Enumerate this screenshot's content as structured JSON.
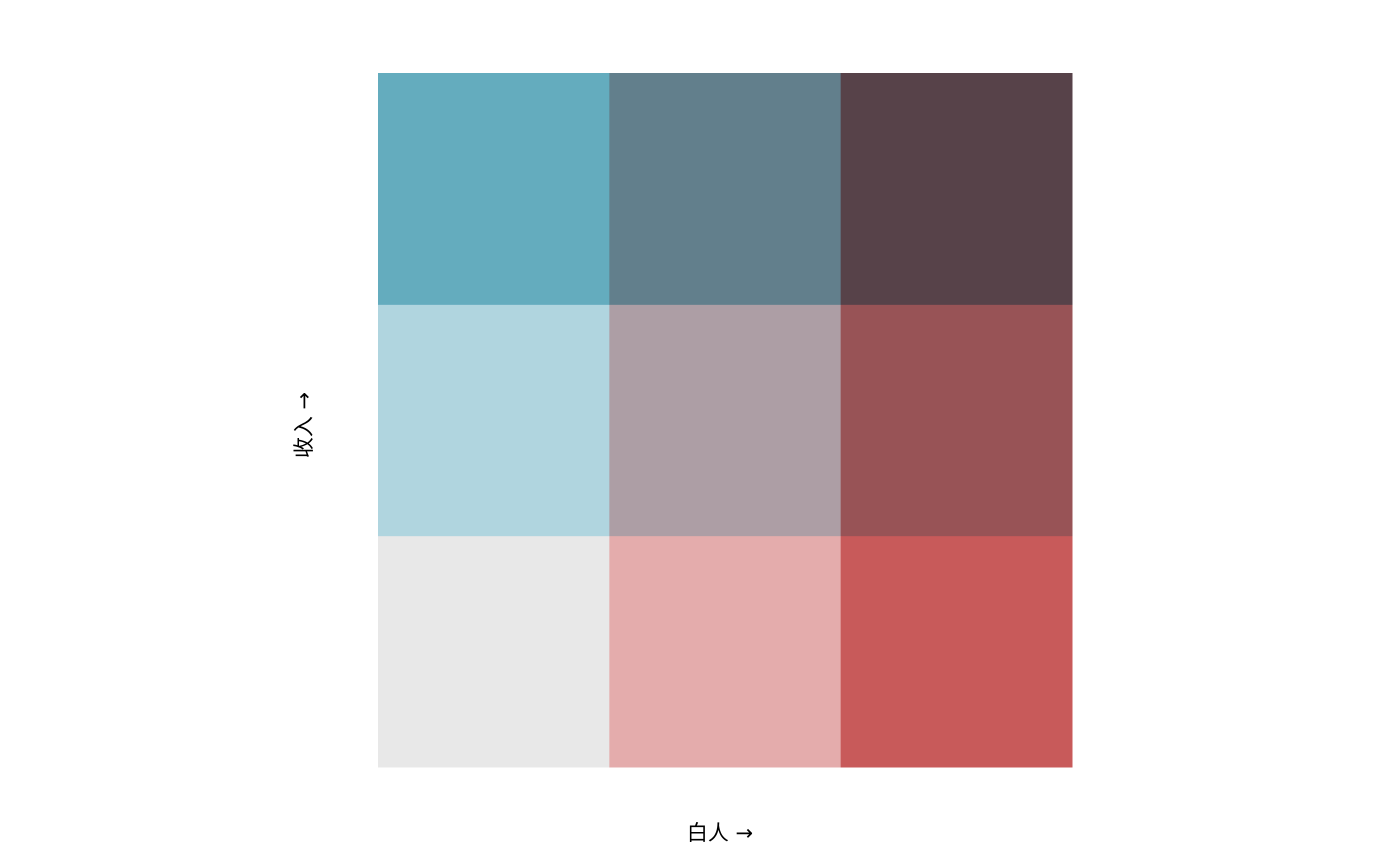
{
  "chart_data": {
    "type": "heatmap",
    "title": "",
    "xlabel": "白人 →",
    "ylabel": "收入 →",
    "grid_size": [
      3,
      3
    ],
    "cells": [
      {
        "col": 0,
        "row": 0,
        "color": "#e8e8e8"
      },
      {
        "col": 1,
        "row": 0,
        "color": "#e4acac"
      },
      {
        "col": 2,
        "row": 0,
        "color": "#c85a5a"
      },
      {
        "col": 0,
        "row": 1,
        "color": "#b0d5df"
      },
      {
        "col": 1,
        "row": 1,
        "color": "#ad9ea5"
      },
      {
        "col": 2,
        "row": 1,
        "color": "#985356"
      },
      {
        "col": 0,
        "row": 2,
        "color": "#64acbe"
      },
      {
        "col": 1,
        "row": 2,
        "color": "#627f8c"
      },
      {
        "col": 2,
        "row": 2,
        "color": "#574249"
      }
    ]
  }
}
